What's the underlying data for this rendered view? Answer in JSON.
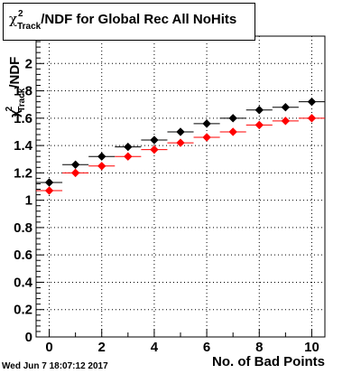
{
  "title_box": {
    "prefix": "χ",
    "sup": "2",
    "sub": "Track",
    "rest": "/NDF for Global Rec All NoHits"
  },
  "timestamp": "Wed Jun  7 18:07:12 2017",
  "chart_data": {
    "type": "scatter",
    "title": "χ²_Track/NDF for Global Rec All NoHits",
    "xlabel": "No. of Bad Points",
    "ylabel": "χ²_Track/NDF",
    "xlim": [
      -0.5,
      10.5
    ],
    "ylim": [
      0,
      2.2
    ],
    "xticks": [
      0,
      2,
      4,
      6,
      8,
      10
    ],
    "yticks": [
      0,
      0.2,
      0.4,
      0.6,
      0.8,
      1,
      1.2,
      1.4,
      1.6,
      1.8,
      2
    ],
    "grid": true,
    "x": [
      0,
      1,
      2,
      3,
      4,
      5,
      6,
      7,
      8,
      9,
      10
    ],
    "x_err": 0.5,
    "series": [
      {
        "color": "#000000",
        "values": [
          1.13,
          1.26,
          1.32,
          1.39,
          1.44,
          1.5,
          1.56,
          1.6,
          1.66,
          1.68,
          1.72
        ]
      },
      {
        "color": "#ff0000",
        "values": [
          1.07,
          1.2,
          1.25,
          1.32,
          1.37,
          1.42,
          1.46,
          1.5,
          1.55,
          1.58,
          1.6
        ]
      }
    ]
  }
}
